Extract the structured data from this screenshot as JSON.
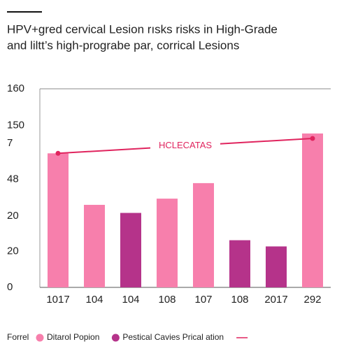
{
  "chart_data": {
    "type": "bar",
    "title": "HPV+gred cervical Lesion rısks risks in High-Grade",
    "subtitle": "and liltt’s high-prograbe par, corrical Lesions",
    "categories": [
      "1017",
      "104",
      "104",
      "108",
      "107",
      "108",
      "2017",
      "292"
    ],
    "series": [
      {
        "name": "Ditarol Popion",
        "color": "#f77fac",
        "values": [
          108,
          66.5,
          null,
          71.5,
          84,
          null,
          null,
          124
        ]
      },
      {
        "name": "Pestical Cavies Prical ation",
        "color": "#b5338a",
        "values": [
          null,
          null,
          60,
          null,
          null,
          38,
          33,
          null
        ]
      },
      {
        "name": "HCLECATAS",
        "type": "line",
        "color": "#e0245e",
        "x": [
          0,
          7
        ],
        "values": [
          108,
          120
        ]
      }
    ],
    "legend_title": "Forrel",
    "ylim": [
      0,
      160
    ],
    "yticks": [
      0,
      {
        "value": 29,
        "label": "20"
      },
      {
        "value": 57.5,
        "label": "20"
      },
      {
        "value": 87,
        "label": "48"
      },
      {
        "value": 116,
        "label": "7"
      },
      {
        "value": 130.5,
        "label": "150"
      },
      160
    ]
  }
}
